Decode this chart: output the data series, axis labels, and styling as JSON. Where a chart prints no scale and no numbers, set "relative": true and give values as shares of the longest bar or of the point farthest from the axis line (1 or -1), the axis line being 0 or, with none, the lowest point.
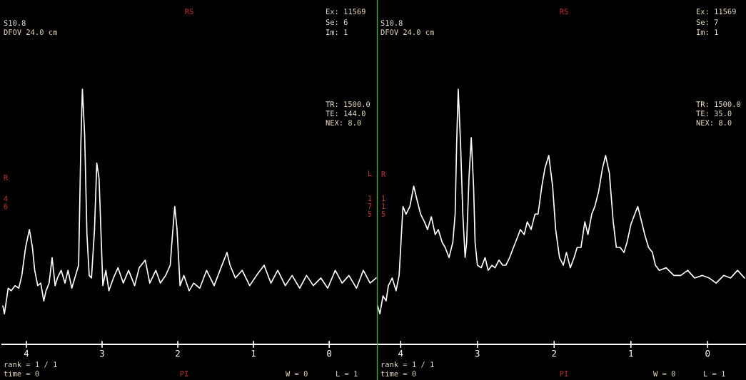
{
  "chart_data": [
    {
      "type": "line",
      "relative": true,
      "xlim": [
        4.32,
        -0.63
      ],
      "xticks": [
        4,
        3,
        2,
        1,
        0
      ],
      "annotations": [
        "RS",
        "S10.8",
        "DFOV 24.0 cm",
        "Ex: 11569",
        "Se: 6",
        "Im: 1",
        "TR: 1500.0",
        "TE: 144.0",
        "NEX: 8.0",
        "R",
        "4\n6",
        "L",
        "1\n7\n5",
        "rank = 1 / 1",
        "time = 0",
        "PI",
        "W = 0",
        "L = 1"
      ],
      "series": [
        {
          "color": "#ffffff",
          "x": [
            4.31,
            4.29,
            4.24,
            4.2,
            4.15,
            4.1,
            4.06,
            4.01,
            3.96,
            3.92,
            3.89,
            3.85,
            3.81,
            3.77,
            3.74,
            3.7,
            3.66,
            3.62,
            3.59,
            3.54,
            3.49,
            3.45,
            3.4,
            3.35,
            3.31,
            3.28,
            3.26,
            3.23,
            3.2,
            3.17,
            3.14,
            3.1,
            3.07,
            3.04,
            3.01,
            2.99,
            2.95,
            2.91,
            2.85,
            2.79,
            2.72,
            2.65,
            2.57,
            2.51,
            2.43,
            2.37,
            2.29,
            2.23,
            2.16,
            2.1,
            2.07,
            2.04,
            2.01,
            1.97,
            1.92,
            1.85,
            1.79,
            1.71,
            1.62,
            1.52,
            1.43,
            1.35,
            1.31,
            1.24,
            1.15,
            1.05,
            0.96,
            0.86,
            0.77,
            0.68,
            0.58,
            0.49,
            0.39,
            0.3,
            0.21,
            0.11,
            0.02,
            -0.08,
            -0.17,
            -0.26,
            -0.36,
            -0.45,
            -0.54,
            -0.62
          ],
          "values": [
            0.15,
            0.12,
            0.22,
            0.21,
            0.23,
            0.22,
            0.27,
            0.38,
            0.45,
            0.38,
            0.29,
            0.23,
            0.24,
            0.17,
            0.21,
            0.24,
            0.34,
            0.23,
            0.26,
            0.29,
            0.24,
            0.29,
            0.22,
            0.27,
            0.31,
            0.79,
            1,
            0.82,
            0.43,
            0.27,
            0.26,
            0.45,
            0.71,
            0.65,
            0.4,
            0.23,
            0.29,
            0.21,
            0.26,
            0.3,
            0.24,
            0.29,
            0.23,
            0.3,
            0.33,
            0.24,
            0.29,
            0.24,
            0.27,
            0.31,
            0.43,
            0.54,
            0.45,
            0.23,
            0.27,
            0.21,
            0.24,
            0.22,
            0.29,
            0.23,
            0.3,
            0.36,
            0.31,
            0.26,
            0.29,
            0.23,
            0.27,
            0.31,
            0.24,
            0.29,
            0.23,
            0.27,
            0.22,
            0.27,
            0.23,
            0.26,
            0.22,
            0.29,
            0.24,
            0.27,
            0.22,
            0.29,
            0.24,
            0.26
          ]
        }
      ]
    },
    {
      "type": "line",
      "relative": true,
      "xlim": [
        4.3,
        -0.5
      ],
      "xticks": [
        4,
        3,
        2,
        1,
        0
      ],
      "annotations": [
        "RS",
        "S10.8",
        "DFOV 24.0 cm",
        "Ex: 11569",
        "Se: 7",
        "Im: 1",
        "TR: 1500.0",
        "TE: 35.0",
        "NEX: 8.0",
        "R",
        "1\n1\n5",
        "rank = 1 / 1",
        "time = 0",
        "PI",
        "W = 0",
        "L = 1"
      ],
      "series": [
        {
          "color": "#ffffff",
          "x": [
            4.3,
            4.27,
            4.23,
            4.19,
            4.16,
            4.11,
            4.06,
            4.02,
            3.97,
            3.93,
            3.88,
            3.83,
            3.79,
            3.74,
            3.69,
            3.65,
            3.6,
            3.55,
            3.51,
            3.46,
            3.42,
            3.37,
            3.32,
            3.29,
            3.27,
            3.25,
            3.22,
            3.19,
            3.16,
            3.14,
            3.11,
            3.08,
            3.05,
            3.03,
            3.0,
            2.95,
            2.9,
            2.86,
            2.81,
            2.77,
            2.72,
            2.67,
            2.63,
            2.58,
            2.53,
            2.49,
            2.44,
            2.39,
            2.35,
            2.3,
            2.25,
            2.21,
            2.16,
            2.12,
            2.07,
            2.02,
            1.98,
            1.93,
            1.88,
            1.84,
            1.79,
            1.74,
            1.7,
            1.65,
            1.6,
            1.56,
            1.51,
            1.47,
            1.42,
            1.37,
            1.33,
            1.28,
            1.23,
            1.19,
            1.14,
            1.09,
            1.05,
            1.0,
            0.95,
            0.91,
            0.86,
            0.82,
            0.77,
            0.72,
            0.68,
            0.63,
            0.54,
            0.44,
            0.35,
            0.26,
            0.17,
            0.07,
            -0.02,
            -0.11,
            -0.21,
            -0.3,
            -0.39,
            -0.48
          ],
          "values": [
            0.15,
            0.12,
            0.19,
            0.17,
            0.23,
            0.26,
            0.21,
            0.27,
            0.54,
            0.51,
            0.54,
            0.62,
            0.57,
            0.51,
            0.48,
            0.45,
            0.5,
            0.43,
            0.45,
            0.4,
            0.38,
            0.34,
            0.4,
            0.51,
            0.79,
            1,
            0.79,
            0.51,
            0.34,
            0.4,
            0.65,
            0.81,
            0.62,
            0.4,
            0.31,
            0.3,
            0.34,
            0.29,
            0.31,
            0.3,
            0.33,
            0.31,
            0.31,
            0.34,
            0.38,
            0.41,
            0.45,
            0.43,
            0.48,
            0.45,
            0.51,
            0.51,
            0.62,
            0.69,
            0.74,
            0.62,
            0.45,
            0.34,
            0.31,
            0.36,
            0.3,
            0.34,
            0.38,
            0.38,
            0.48,
            0.43,
            0.51,
            0.54,
            0.6,
            0.69,
            0.74,
            0.67,
            0.48,
            0.38,
            0.38,
            0.36,
            0.4,
            0.47,
            0.51,
            0.54,
            0.48,
            0.43,
            0.38,
            0.36,
            0.31,
            0.29,
            0.3,
            0.27,
            0.27,
            0.29,
            0.26,
            0.27,
            0.26,
            0.24,
            0.27,
            0.26,
            0.29,
            0.26
          ]
        }
      ]
    }
  ]
}
